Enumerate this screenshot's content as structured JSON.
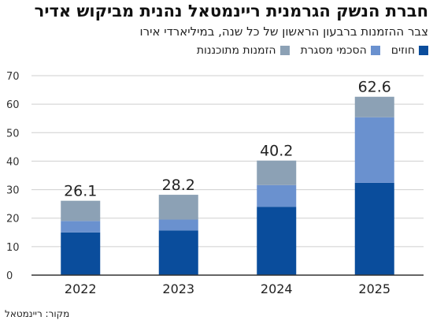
{
  "header": {
    "title": "חברת הנשק הגרמנית ריינמטאל נהנית מביקוש אדיר",
    "subtitle": "צבר ההזמנות ברבעון הראשון של כל שנה, במיליארדי אירו"
  },
  "source": "מקור: ריינמטאל",
  "colors": {
    "contracts": "#0a4d9c",
    "framework": "#6a91cf",
    "planned": "#8ca1b5",
    "grid": "#cfcfcf",
    "axis": "#333333"
  },
  "chart_data": {
    "type": "bar",
    "stacked": true,
    "categories": [
      "2022",
      "2023",
      "2024",
      "2025"
    ],
    "series": [
      {
        "name": "חוזים",
        "color_key": "contracts",
        "values": [
          15.0,
          15.7,
          24.0,
          32.4
        ]
      },
      {
        "name": "הסכמי מסגרת",
        "color_key": "framework",
        "values": [
          4.0,
          3.8,
          7.6,
          23.0
        ]
      },
      {
        "name": "הזמנות מתוכננות",
        "color_key": "planned",
        "values": [
          7.1,
          8.7,
          8.6,
          7.2
        ]
      }
    ],
    "totals": [
      "26.1",
      "28.2",
      "40.2",
      "62.6"
    ],
    "ylim": [
      0,
      70
    ],
    "yticks": [
      0,
      10,
      20,
      30,
      40,
      50,
      60,
      70
    ],
    "grid": true,
    "legend_position": "top-right"
  }
}
